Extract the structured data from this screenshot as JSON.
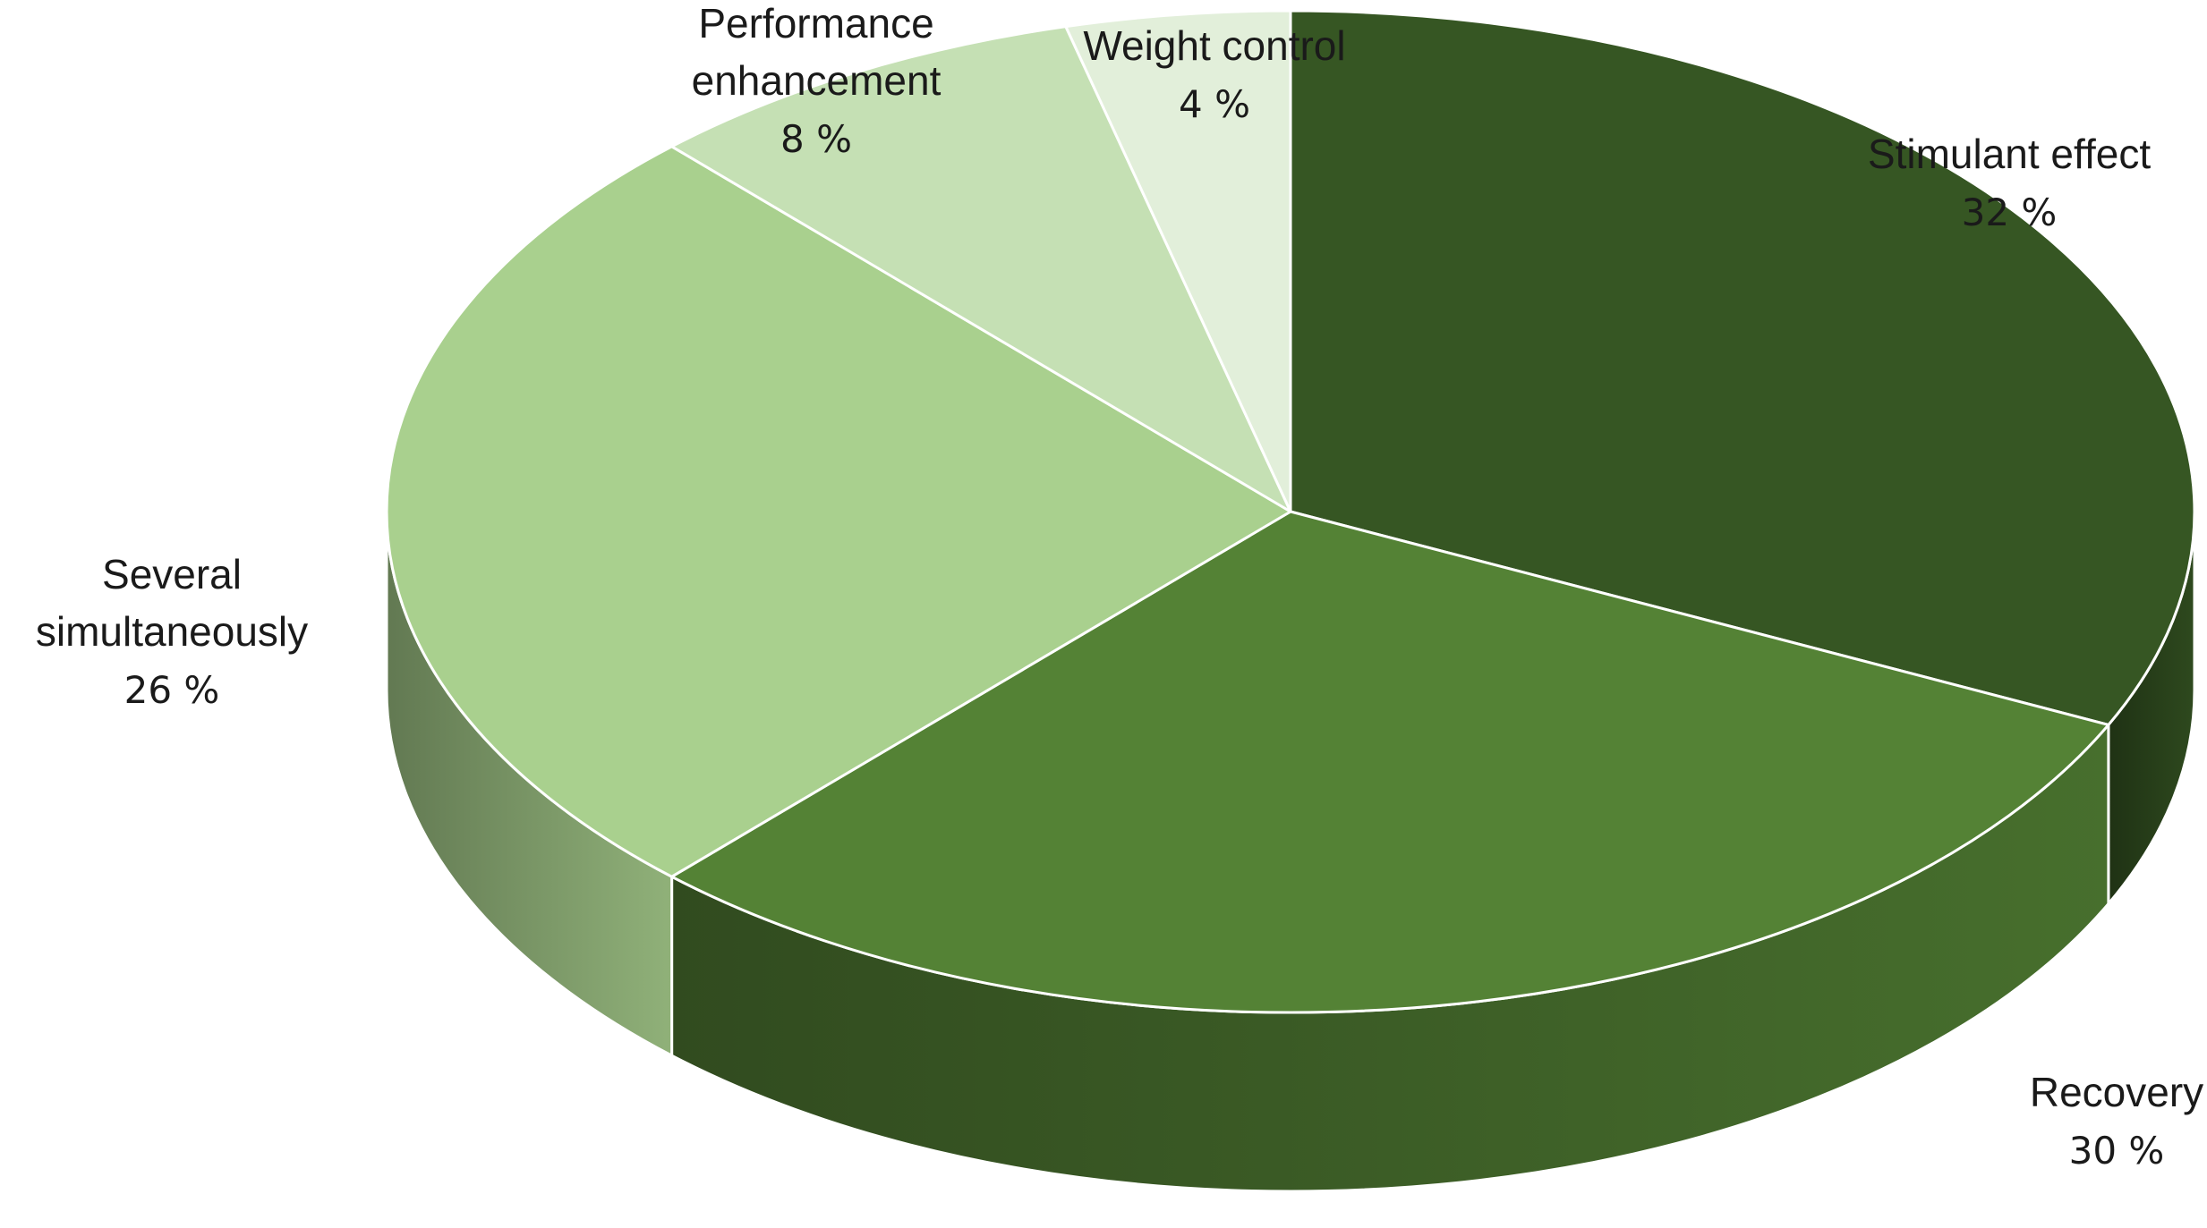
{
  "chart_data": {
    "type": "pie",
    "style": "3d",
    "slices": [
      {
        "label_lines": [
          "Stimulant effect"
        ],
        "percent_text": "32 %",
        "value": 32,
        "color": "#365623"
      },
      {
        "label_lines": [
          "Recovery"
        ],
        "percent_text": "30 %",
        "value": 30,
        "color": "#548235"
      },
      {
        "label_lines": [
          "Several",
          "simultaneously"
        ],
        "percent_text": "26 %",
        "value": 26,
        "color": "#a9d08e"
      },
      {
        "label_lines": [
          "Performance",
          "enhancement"
        ],
        "percent_text": "8 %",
        "value": 8,
        "color": "#c5e0b4"
      },
      {
        "label_lines": [
          "Weight control"
        ],
        "percent_text": "4 %",
        "value": 4,
        "color": "#e2efda"
      }
    ],
    "legend": "none",
    "data_labels": "outside"
  }
}
